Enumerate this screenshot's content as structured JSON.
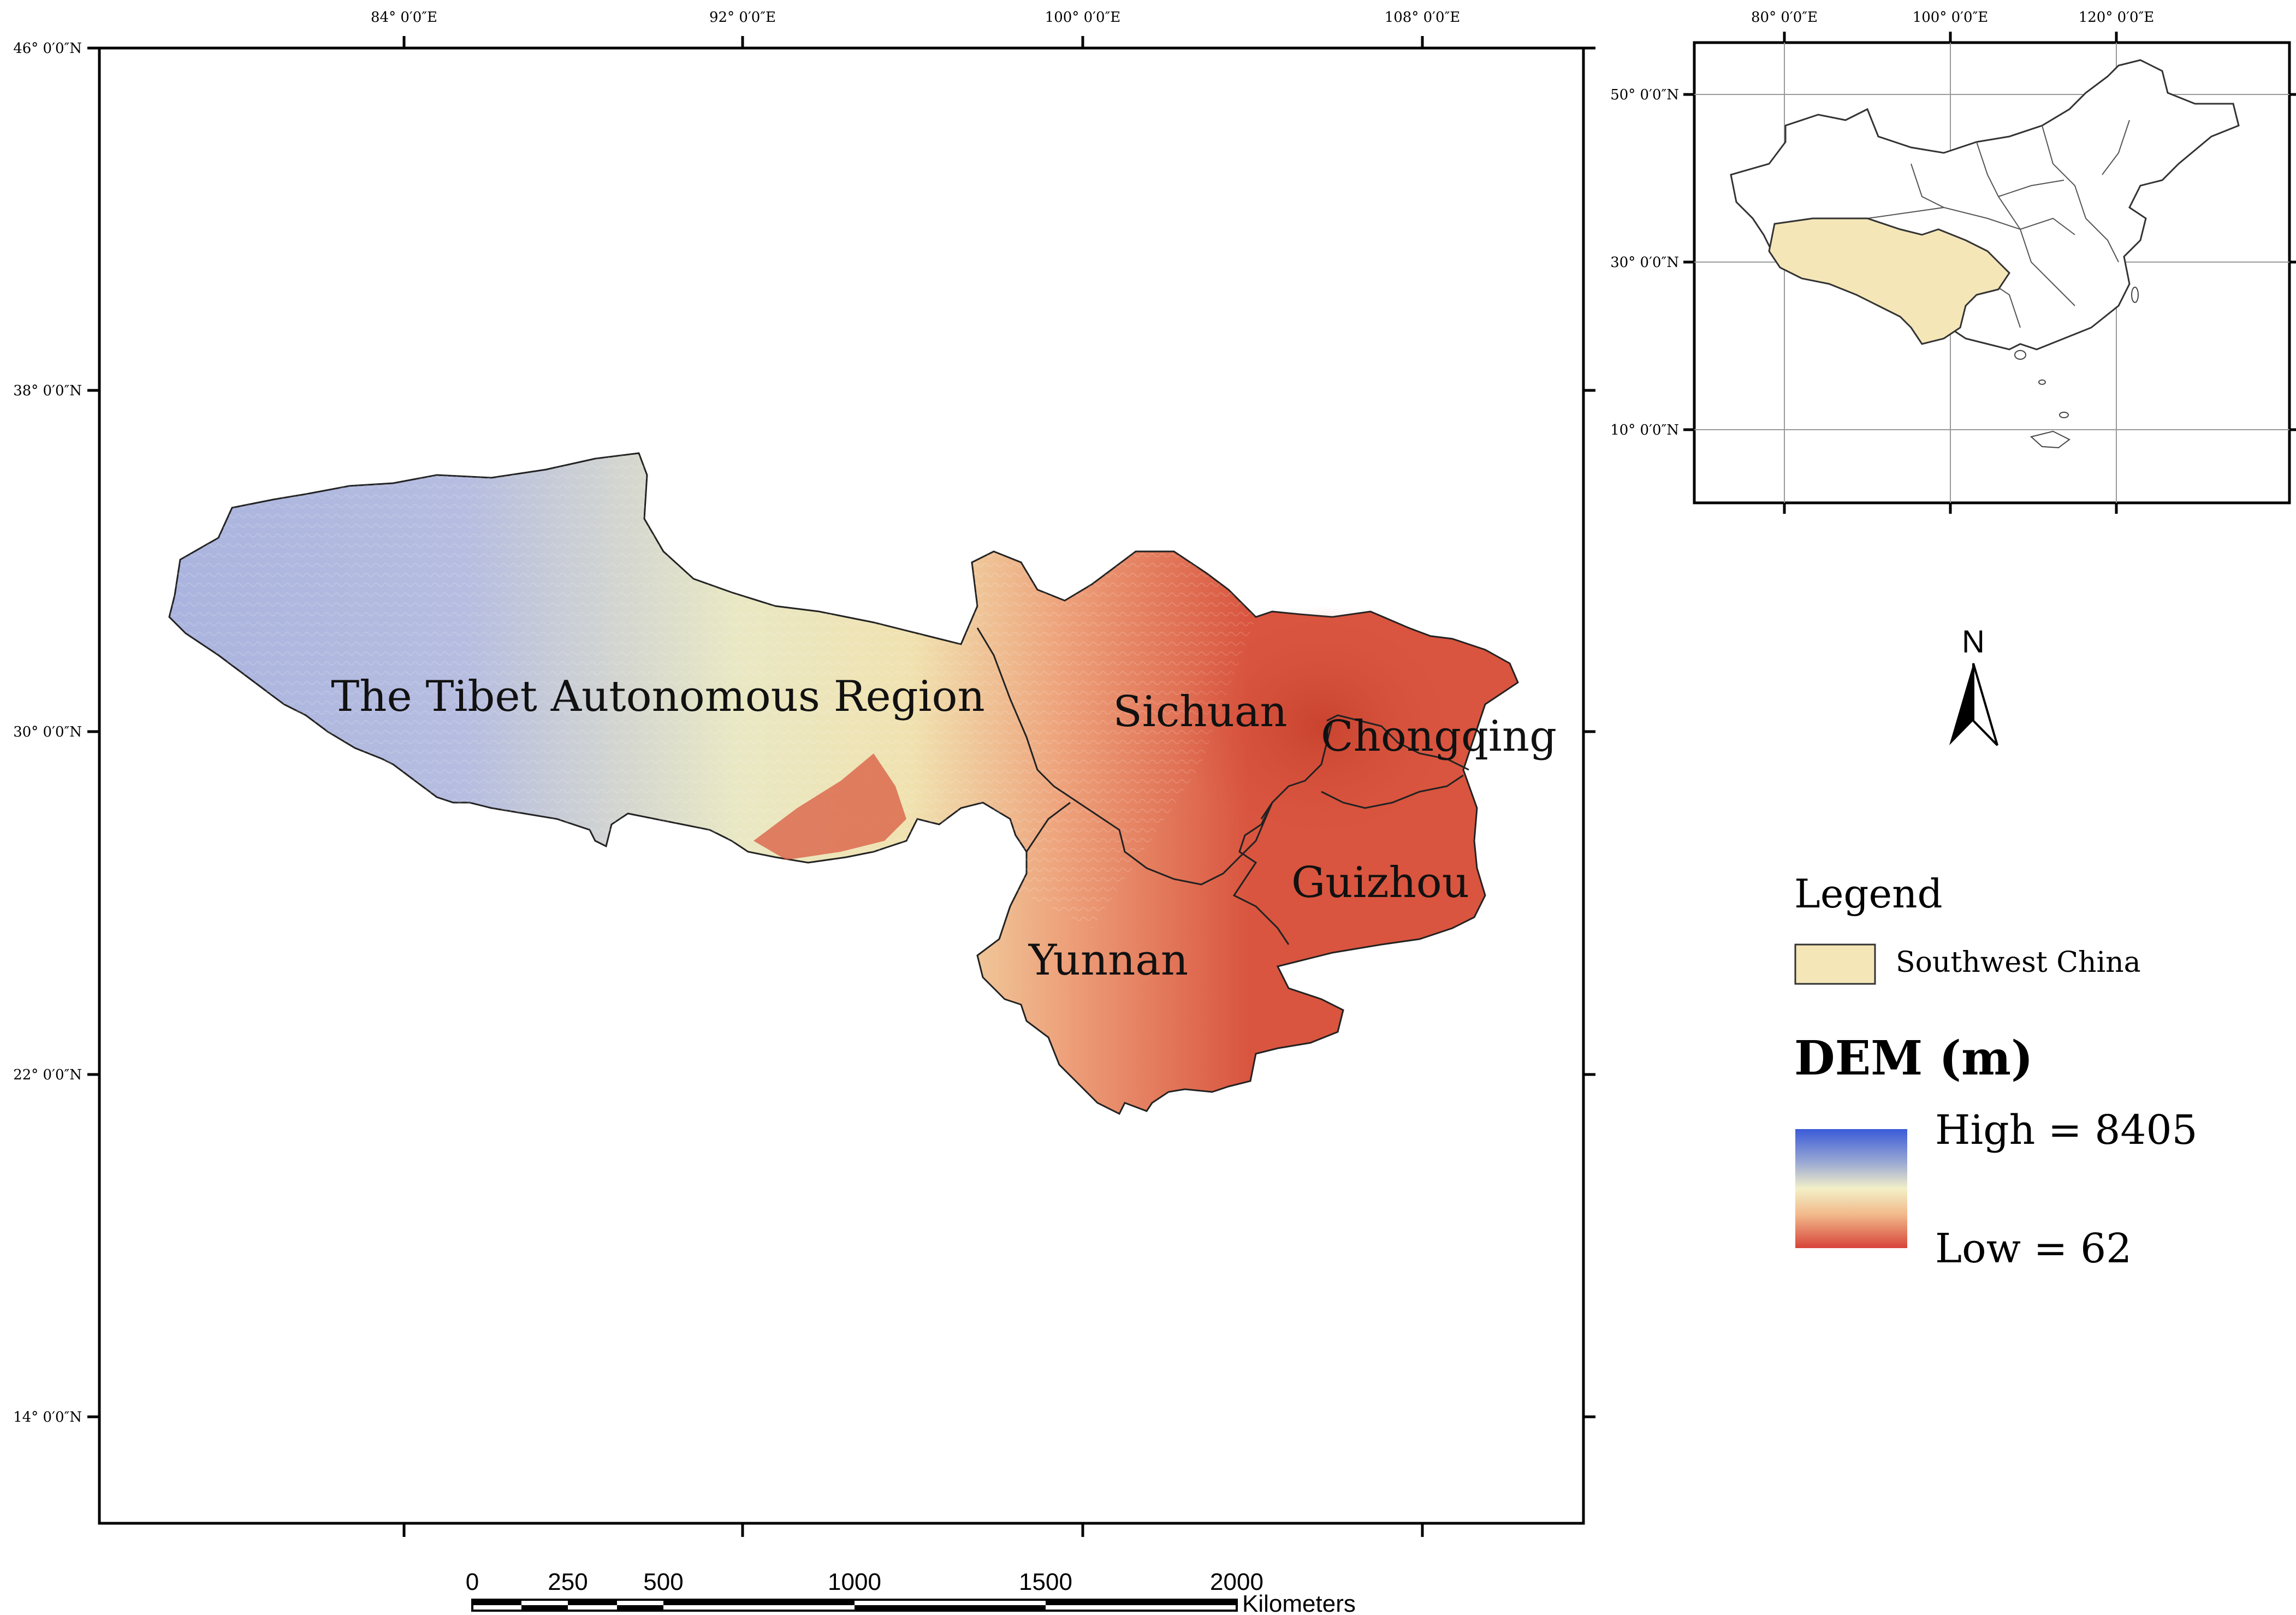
{
  "main_map": {
    "top_ticks": [
      "84° 0′0″E",
      "92° 0′0″E",
      "100° 0′0″E",
      "108° 0′0″E"
    ],
    "left_ticks": [
      "46° 0′0″N",
      "38° 0′0″N",
      "30° 0′0″N",
      "22° 0′0″N",
      "14° 0′0″N"
    ],
    "regions": [
      {
        "id": "tibet",
        "label": "The Tibet Autonomous Region"
      },
      {
        "id": "sichuan",
        "label": "Sichuan"
      },
      {
        "id": "chongqing",
        "label": "Chongqing"
      },
      {
        "id": "guizhou",
        "label": "Guizhou"
      },
      {
        "id": "yunnan",
        "label": "Yunnan"
      }
    ]
  },
  "inset_map": {
    "top_ticks": [
      "80° 0′0″E",
      "100° 0′0″E",
      "120° 0′0″E"
    ],
    "left_ticks": [
      "50° 0′0″N",
      "30° 0′0″N",
      "10° 0′0″N"
    ],
    "highlight_color": "#f5e6b8"
  },
  "north_arrow": {
    "label": "N",
    "icon": "north-arrow-icon"
  },
  "legend": {
    "title": "Legend",
    "items": [
      {
        "label": "Southwest China",
        "color": "#f5e6b8"
      }
    ]
  },
  "dem": {
    "title": "DEM (m)",
    "high_label": "High = 8405",
    "low_label": "Low = 62",
    "colors": [
      "#3a5bd8",
      "#9aa8d4",
      "#f3f0c8",
      "#f2b98a",
      "#d7443a"
    ]
  },
  "scale_bar": {
    "ticks": [
      "0",
      "250",
      "500",
      "1000",
      "1500",
      "2000"
    ],
    "unit": "Kilometers"
  }
}
